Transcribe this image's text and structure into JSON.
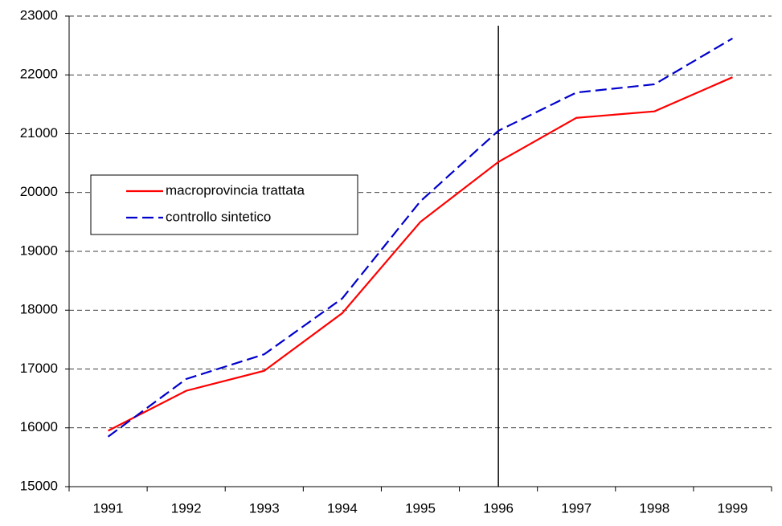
{
  "chart_data": {
    "type": "line",
    "categories": [
      "1991",
      "1992",
      "1993",
      "1994",
      "1995",
      "1996",
      "1997",
      "1998",
      "1999"
    ],
    "series": [
      {
        "name": "macroprovincia trattata",
        "color": "#ff0000",
        "dash": "solid",
        "values": [
          15950,
          16630,
          16970,
          17950,
          19500,
          20520,
          21270,
          21380,
          21960
        ]
      },
      {
        "name": "controllo sintetico",
        "color": "#0000cc",
        "dash": "dashed",
        "values": [
          15850,
          16830,
          17250,
          18200,
          19850,
          21050,
          21700,
          21840,
          22620
        ]
      }
    ],
    "ylim": [
      15000,
      23000
    ],
    "yticks": [
      15000,
      16000,
      17000,
      18000,
      19000,
      20000,
      21000,
      22000,
      23000
    ],
    "grid": true,
    "vline": "1996",
    "legend": "left"
  }
}
